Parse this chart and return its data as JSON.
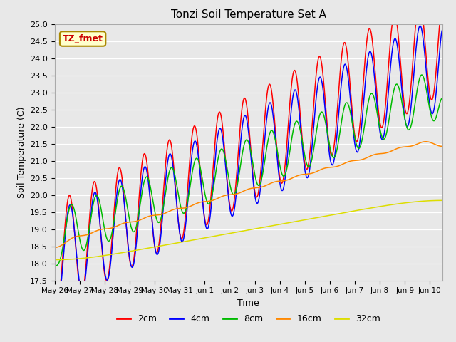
{
  "title": "Tonzi Soil Temperature Set A",
  "xlabel": "Time",
  "ylabel": "Soil Temperature (C)",
  "ylim": [
    17.5,
    25.0
  ],
  "bg_color": "#e8e8e8",
  "series": [
    {
      "label": "2cm",
      "color": "#ff0000"
    },
    {
      "label": "4cm",
      "color": "#0000ff"
    },
    {
      "label": "8cm",
      "color": "#00bb00"
    },
    {
      "label": "16cm",
      "color": "#ff8800"
    },
    {
      "label": "32cm",
      "color": "#dddd00"
    }
  ],
  "annotation_text": "TZ_fmet",
  "annotation_color": "#cc0000",
  "annotation_bg": "#ffffcc",
  "annotation_edge": "#aa8800",
  "tick_label_dates": [
    "May 26",
    "May 27",
    "May 28",
    "May 29",
    "May 30",
    "May 31",
    "Jun 1",
    "Jun 2",
    "Jun 3",
    "Jun 4",
    "Jun 5",
    "Jun 6",
    "Jun 7",
    "Jun 8",
    "Jun 9",
    "Jun 10"
  ],
  "grid_color": "#ffffff",
  "yticks": [
    17.5,
    18.0,
    18.5,
    19.0,
    19.5,
    20.0,
    20.5,
    21.0,
    21.5,
    22.0,
    22.5,
    23.0,
    23.5,
    24.0,
    24.5,
    25.0
  ]
}
